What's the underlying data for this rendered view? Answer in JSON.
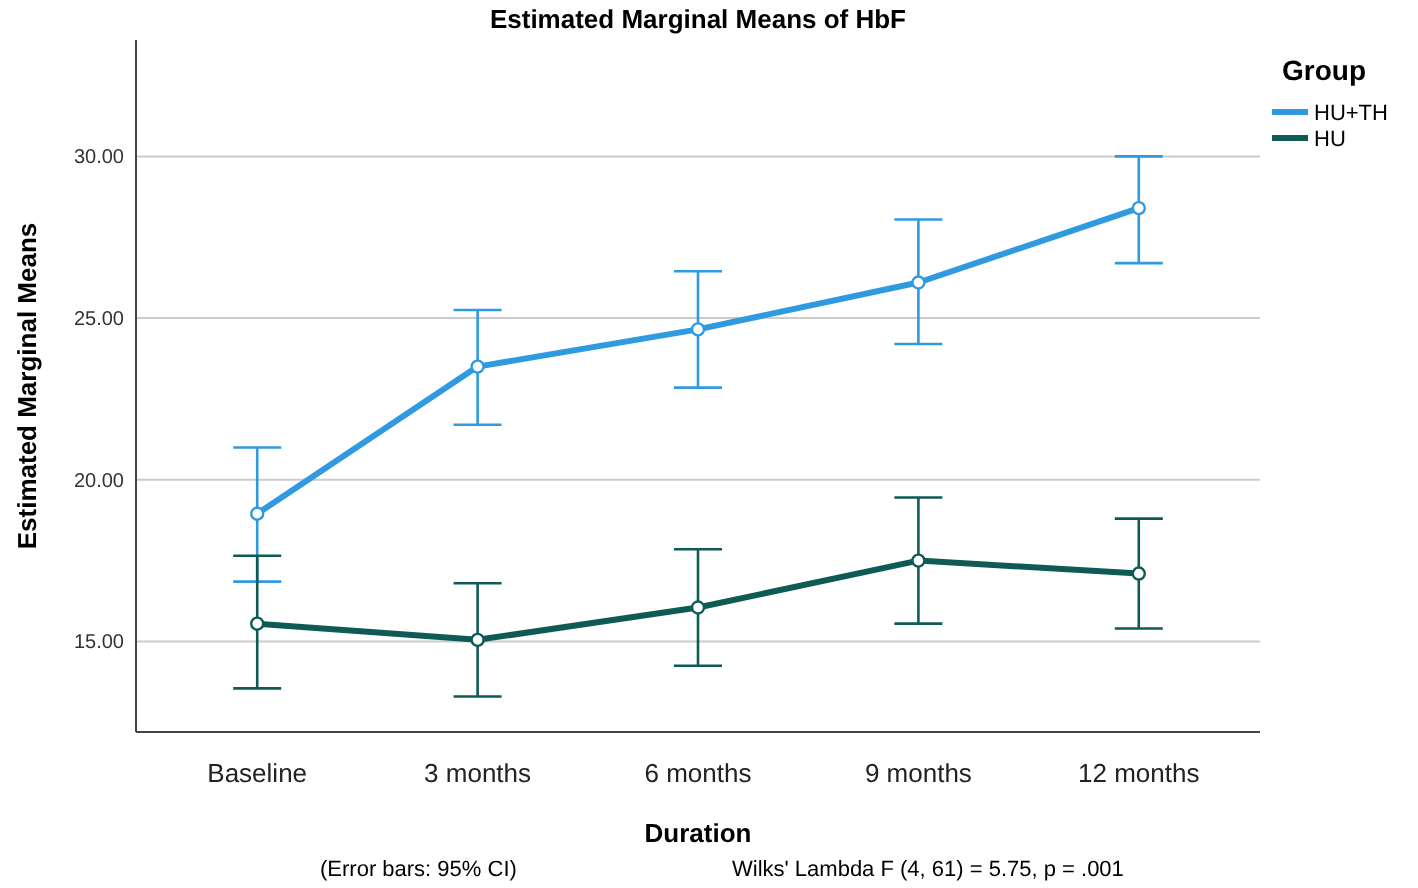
{
  "chart_data": {
    "type": "line",
    "title": "Estimated Marginal Means of HbF",
    "xlabel": "Duration",
    "ylabel": "Estimated Marginal Means",
    "legend_title": "Group",
    "categories": [
      "Baseline",
      "3 months",
      "6 months",
      "9 months",
      "12 months"
    ],
    "series": [
      {
        "name": "HU+TH",
        "color": "#2f9ae0",
        "values": [
          18.95,
          23.5,
          24.65,
          26.1,
          28.4
        ],
        "errors": [
          [
            16.85,
            21.0
          ],
          [
            21.7,
            25.25
          ],
          [
            22.85,
            26.45
          ],
          [
            24.2,
            28.05
          ],
          [
            26.7,
            30.0
          ]
        ]
      },
      {
        "name": "HU",
        "color": "#0e5b55",
        "values": [
          15.55,
          15.05,
          16.05,
          17.5,
          17.1
        ],
        "errors": [
          [
            13.55,
            17.65
          ],
          [
            13.3,
            16.8
          ],
          [
            14.25,
            17.85
          ],
          [
            15.55,
            19.45
          ],
          [
            15.4,
            18.8
          ]
        ]
      }
    ],
    "ylim": [
      12.2,
      33.6
    ],
    "yticks": [
      {
        "value": 15,
        "label": "15.00"
      },
      {
        "value": 20,
        "label": "20.00"
      },
      {
        "value": 25,
        "label": "25.00"
      },
      {
        "value": 30,
        "label": "30.00"
      }
    ],
    "grid": "y",
    "legend": "top right",
    "marker": "circle",
    "line_style": "solid",
    "annotations": [
      "(Error bars: 95% CI)",
      "Wilks' Lambda F (4, 61) = 5.75, p = .001"
    ]
  }
}
